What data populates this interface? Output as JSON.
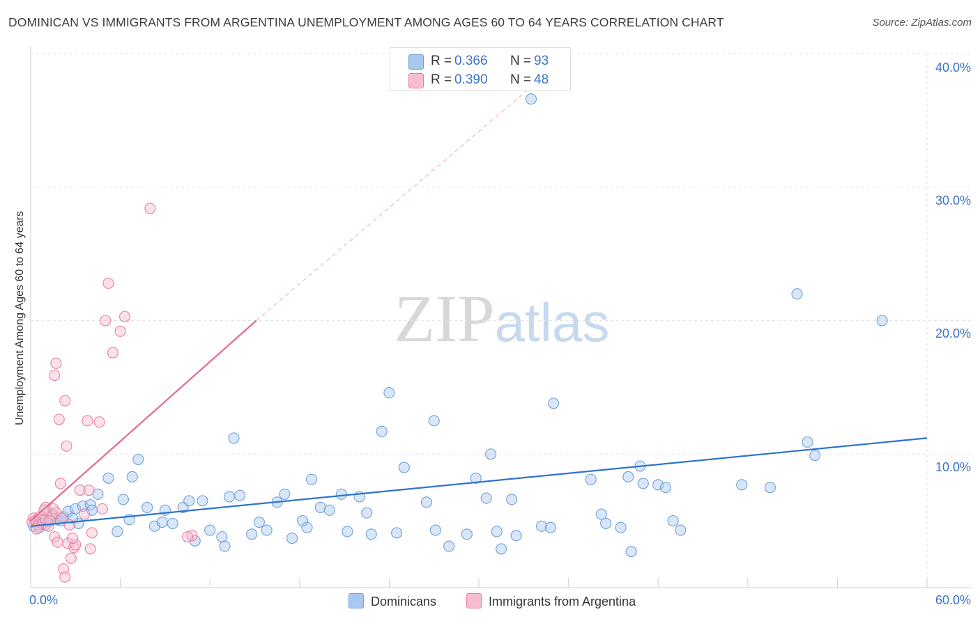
{
  "title": "DOMINICAN VS IMMIGRANTS FROM ARGENTINA UNEMPLOYMENT AMONG AGES 60 TO 64 YEARS CORRELATION CHART",
  "source": "Source: ZipAtlas.com",
  "watermark": "ZIPatlas",
  "legend": {
    "dominicans": {
      "r_label": "R =",
      "r_value": "0.366",
      "n_label": "N =",
      "n_value": "93",
      "name": "Dominicans",
      "color": "#a9c8f0",
      "stroke": "#6f9fd8"
    },
    "argentina": {
      "r_label": "R =",
      "r_value": "0.390",
      "n_label": "N =",
      "n_value": "48",
      "name": "Immigrants from Argentina",
      "color": "#f7bcd0",
      "stroke": "#e8809f"
    }
  },
  "chart_data": {
    "type": "scatter",
    "title": "DOMINICAN VS IMMIGRANTS FROM ARGENTINA UNEMPLOYMENT AMONG AGES 60 TO 64 YEARS CORRELATION CHART",
    "xlabel": "",
    "ylabel": "Unemployment Among Ages 60 to 64 years",
    "xlim": [
      0,
      60
    ],
    "ylim": [
      0,
      40
    ],
    "x_tick_labels": [
      "0.0%",
      "60.0%"
    ],
    "y_tick_labels": [
      "10.0%",
      "20.0%",
      "30.0%",
      "40.0%"
    ],
    "y_ticks": [
      10,
      20,
      30,
      40
    ],
    "series": [
      {
        "name": "Dominicans",
        "color": "#a9c8f0",
        "trend": {
          "x": [
            0,
            60
          ],
          "y": [
            4.6,
            11.2
          ],
          "color": "#2f72cc"
        },
        "points": [
          [
            0.2,
            4.6
          ],
          [
            0.4,
            4.9
          ],
          [
            0.6,
            4.5
          ],
          [
            0.8,
            5.1
          ],
          [
            1.0,
            4.7
          ],
          [
            1.2,
            5.0
          ],
          [
            1.5,
            5.4
          ],
          [
            1.8,
            5.1
          ],
          [
            2.0,
            5.0
          ],
          [
            2.2,
            5.3
          ],
          [
            2.5,
            5.7
          ],
          [
            3.0,
            5.9
          ],
          [
            3.5,
            6.1
          ],
          [
            4.0,
            6.2
          ],
          [
            4.5,
            7.0
          ],
          [
            5.2,
            8.2
          ],
          [
            5.8,
            4.2
          ],
          [
            6.2,
            6.6
          ],
          [
            6.8,
            8.3
          ],
          [
            7.2,
            9.6
          ],
          [
            7.8,
            6.0
          ],
          [
            8.3,
            4.6
          ],
          [
            9.0,
            5.8
          ],
          [
            9.5,
            4.8
          ],
          [
            10.2,
            6.0
          ],
          [
            10.6,
            6.5
          ],
          [
            11.5,
            6.5
          ],
          [
            12.0,
            4.3
          ],
          [
            12.8,
            3.8
          ],
          [
            13.6,
            11.2
          ],
          [
            13.3,
            6.8
          ],
          [
            14.0,
            6.9
          ],
          [
            14.8,
            4.0
          ],
          [
            15.3,
            4.9
          ],
          [
            16.5,
            6.4
          ],
          [
            17.0,
            7.0
          ],
          [
            17.5,
            3.7
          ],
          [
            18.2,
            5.0
          ],
          [
            18.5,
            4.5
          ],
          [
            18.8,
            8.1
          ],
          [
            19.4,
            6.0
          ],
          [
            20.0,
            5.8
          ],
          [
            20.8,
            7.0
          ],
          [
            21.2,
            4.2
          ],
          [
            22.0,
            6.8
          ],
          [
            22.5,
            5.6
          ],
          [
            22.8,
            4.0
          ],
          [
            23.5,
            11.7
          ],
          [
            24.0,
            14.6
          ],
          [
            25.0,
            9.0
          ],
          [
            26.5,
            6.4
          ],
          [
            27.0,
            12.5
          ],
          [
            27.1,
            4.3
          ],
          [
            28.0,
            3.1
          ],
          [
            29.2,
            4.0
          ],
          [
            29.8,
            8.2
          ],
          [
            30.5,
            6.7
          ],
          [
            30.8,
            10.0
          ],
          [
            31.2,
            4.2
          ],
          [
            31.5,
            2.9
          ],
          [
            32.2,
            6.6
          ],
          [
            32.5,
            3.9
          ],
          [
            33.5,
            36.6
          ],
          [
            34.2,
            4.6
          ],
          [
            34.8,
            4.5
          ],
          [
            35.0,
            13.8
          ],
          [
            37.5,
            8.1
          ],
          [
            38.2,
            5.5
          ],
          [
            38.5,
            4.8
          ],
          [
            39.5,
            4.5
          ],
          [
            40.0,
            8.3
          ],
          [
            40.2,
            2.7
          ],
          [
            40.8,
            9.1
          ],
          [
            41.0,
            7.8
          ],
          [
            42.0,
            7.7
          ],
          [
            42.5,
            7.5
          ],
          [
            43.0,
            5.0
          ],
          [
            43.5,
            4.3
          ],
          [
            47.6,
            7.7
          ],
          [
            49.5,
            7.5
          ],
          [
            51.3,
            22.0
          ],
          [
            52.0,
            10.9
          ],
          [
            52.5,
            9.9
          ],
          [
            57.0,
            20.0
          ],
          [
            4.1,
            5.8
          ],
          [
            3.2,
            4.8
          ],
          [
            2.8,
            5.2
          ],
          [
            6.6,
            5.1
          ],
          [
            8.8,
            4.9
          ],
          [
            11.0,
            3.5
          ],
          [
            13.0,
            3.1
          ],
          [
            15.8,
            4.3
          ],
          [
            24.5,
            4.1
          ]
        ]
      },
      {
        "name": "Immigrants from Argentina",
        "color": "#f7bcd0",
        "trend": {
          "x": [
            0.0,
            15.1
          ],
          "y": [
            5.0,
            20.0
          ],
          "color": "#e36a90",
          "dashed_extension_to": [
            33.5,
            37.5
          ]
        },
        "points": [
          [
            0.1,
            4.9
          ],
          [
            0.2,
            5.2
          ],
          [
            0.3,
            5.0
          ],
          [
            0.5,
            4.7
          ],
          [
            0.6,
            5.3
          ],
          [
            0.8,
            4.8
          ],
          [
            1.0,
            5.1
          ],
          [
            1.0,
            6.0
          ],
          [
            1.2,
            4.6
          ],
          [
            1.4,
            5.5
          ],
          [
            1.5,
            5.9
          ],
          [
            1.6,
            3.8
          ],
          [
            1.7,
            5.6
          ],
          [
            1.8,
            3.4
          ],
          [
            1.9,
            12.6
          ],
          [
            2.0,
            7.8
          ],
          [
            2.1,
            5.2
          ],
          [
            2.3,
            14.0
          ],
          [
            2.4,
            10.6
          ],
          [
            2.5,
            3.3
          ],
          [
            2.6,
            4.7
          ],
          [
            2.7,
            2.2
          ],
          [
            2.9,
            3.0
          ],
          [
            3.0,
            3.2
          ],
          [
            3.3,
            7.3
          ],
          [
            3.6,
            5.5
          ],
          [
            3.8,
            12.5
          ],
          [
            3.9,
            7.3
          ],
          [
            4.0,
            2.9
          ],
          [
            4.1,
            4.1
          ],
          [
            4.6,
            12.4
          ],
          [
            5.2,
            22.8
          ],
          [
            5.0,
            20.0
          ],
          [
            5.5,
            17.6
          ],
          [
            6.0,
            19.2
          ],
          [
            6.3,
            20.3
          ],
          [
            8.0,
            28.4
          ],
          [
            10.8,
            3.9
          ],
          [
            1.6,
            15.9
          ],
          [
            1.7,
            16.8
          ],
          [
            2.2,
            1.4
          ],
          [
            2.3,
            0.8
          ],
          [
            0.9,
            5.8
          ],
          [
            1.3,
            5.0
          ],
          [
            0.4,
            4.4
          ],
          [
            2.8,
            3.7
          ],
          [
            4.8,
            5.9
          ],
          [
            10.5,
            3.8
          ]
        ]
      }
    ]
  }
}
